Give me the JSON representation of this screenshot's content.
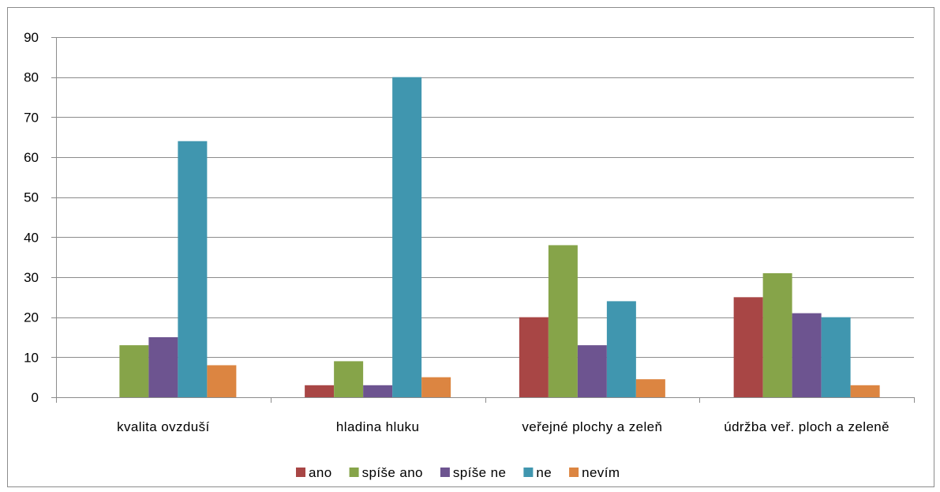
{
  "chart_data": {
    "type": "bar",
    "categories": [
      "kvalita ovzduší",
      "hladina hluku",
      "veřejné plochy a zeleň",
      "údržba veř. ploch a zeleně"
    ],
    "series": [
      {
        "name": "ano",
        "color": "#a84645",
        "values": [
          0,
          3,
          20,
          25
        ]
      },
      {
        "name": "spíše ano",
        "color": "#86a449",
        "values": [
          13,
          9,
          38,
          31
        ]
      },
      {
        "name": "spíše ne",
        "color": "#6d5490",
        "values": [
          15,
          3,
          13,
          21
        ]
      },
      {
        "name": "ne",
        "color": "#4096af",
        "values": [
          64,
          80,
          24,
          20
        ]
      },
      {
        "name": "nevím",
        "color": "#dc8541",
        "values": [
          8,
          5,
          4.5,
          3
        ]
      }
    ],
    "ylim": [
      0,
      90
    ],
    "yticks": [
      0,
      10,
      20,
      30,
      40,
      50,
      60,
      70,
      80,
      90
    ],
    "grid": true,
    "legend_position": "bottom"
  }
}
